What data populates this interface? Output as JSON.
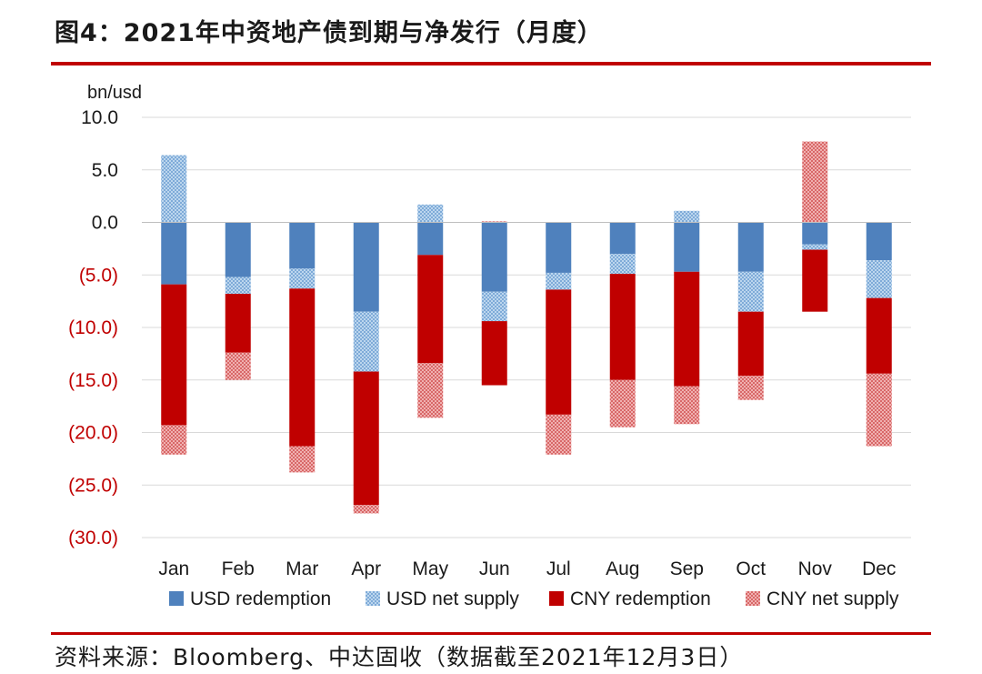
{
  "header": {
    "title": "图4：2021年中资地产债到期与净发行（月度）"
  },
  "footer": {
    "source": "资料来源：Bloomberg、中达固收（数据截至2021年12月3日）"
  },
  "colors": {
    "usd_redemption": "#4f81bd",
    "usd_net_supply": "#9dc3e6",
    "cny_redemption": "#c00000",
    "cny_net_supply": "#e6898a",
    "rule": "#c00000",
    "grid": "#d9d9d9",
    "negative_tick": "#c00000"
  },
  "chart_data": {
    "type": "bar",
    "stacked": true,
    "unit_label": "bn/usd",
    "ylim": [
      -30,
      10
    ],
    "yticks": [
      {
        "value": 10,
        "label": "10.0"
      },
      {
        "value": 5,
        "label": "5.0"
      },
      {
        "value": 0,
        "label": "0.0"
      },
      {
        "value": -5,
        "label": "(5.0)"
      },
      {
        "value": -10,
        "label": "(10.0)"
      },
      {
        "value": -15,
        "label": "(15.0)"
      },
      {
        "value": -20,
        "label": "(20.0)"
      },
      {
        "value": -25,
        "label": "(25.0)"
      },
      {
        "value": -30,
        "label": "(30.0)"
      }
    ],
    "grid": true,
    "legend_position": "bottom",
    "categories": [
      "Jan",
      "Feb",
      "Mar",
      "Apr",
      "May",
      "Jun",
      "Jul",
      "Aug",
      "Sep",
      "Oct",
      "Nov",
      "Dec"
    ],
    "series": [
      {
        "name": "USD redemption",
        "color_key": "usd_redemption",
        "pattern": false,
        "values": [
          -5.9,
          -5.2,
          -4.4,
          -8.5,
          -3.1,
          -6.6,
          -4.8,
          -3.0,
          -4.7,
          -4.7,
          -2.1,
          -3.6
        ]
      },
      {
        "name": "USD net supply",
        "color_key": "usd_net_supply",
        "pattern": true,
        "values": [
          6.4,
          -1.6,
          -1.9,
          -5.7,
          1.7,
          -2.8,
          -1.6,
          -1.9,
          1.1,
          -3.8,
          -0.5,
          -3.6
        ]
      },
      {
        "name": "CNY redemption",
        "color_key": "cny_redemption",
        "pattern": false,
        "values": [
          -13.4,
          -5.6,
          -15.0,
          -12.7,
          -10.3,
          -6.1,
          -11.9,
          -10.1,
          -10.9,
          -6.1,
          -5.9,
          -7.2
        ]
      },
      {
        "name": "CNY net supply",
        "color_key": "cny_net_supply",
        "pattern": true,
        "values": [
          -2.8,
          -2.6,
          -2.5,
          -0.8,
          -5.2,
          0.1,
          -3.8,
          -4.5,
          -3.6,
          -2.3,
          7.7,
          -6.9
        ]
      }
    ]
  }
}
